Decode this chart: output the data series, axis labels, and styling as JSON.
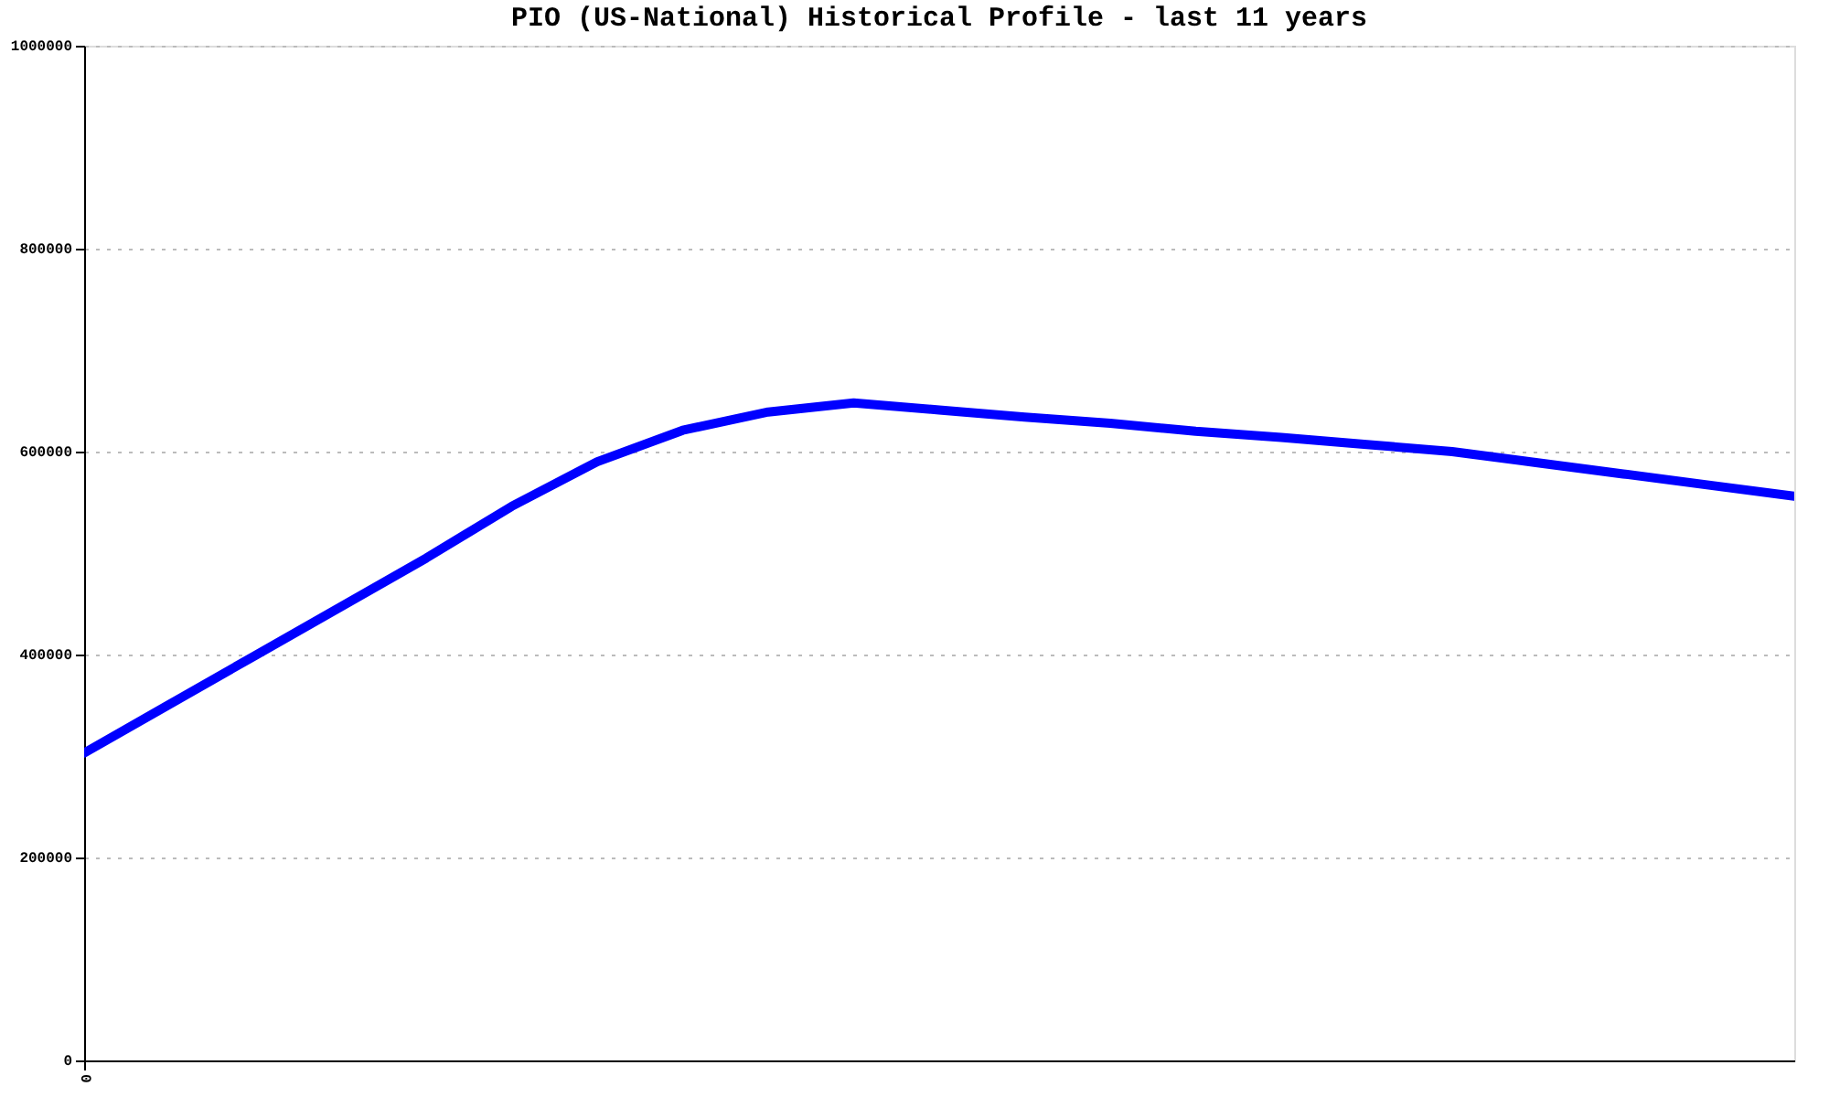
{
  "chart_data": {
    "type": "line",
    "title": "PIO (US-National) Historical Profile - last 11 years",
    "categories": [
      "0",
      null,
      null,
      null,
      null,
      null,
      null,
      null,
      null,
      null,
      null,
      null,
      null,
      null,
      null,
      null,
      null,
      null,
      null,
      null,
      null
    ],
    "series": [
      {
        "color": "#0000ff",
        "values": [
          303000,
          351000,
          399000,
          447000,
          495000,
          546000,
          590000,
          621000,
          639000,
          648000,
          641000,
          634000,
          628000,
          620000,
          614000,
          607000,
          600000,
          589000,
          578000,
          567000,
          556000
        ]
      }
    ],
    "ylim": [
      0,
      1000000
    ],
    "yticks": [
      0,
      200000,
      400000,
      600000,
      800000,
      1000000
    ],
    "grid": "y",
    "marker": "none",
    "line_style": "solid"
  }
}
